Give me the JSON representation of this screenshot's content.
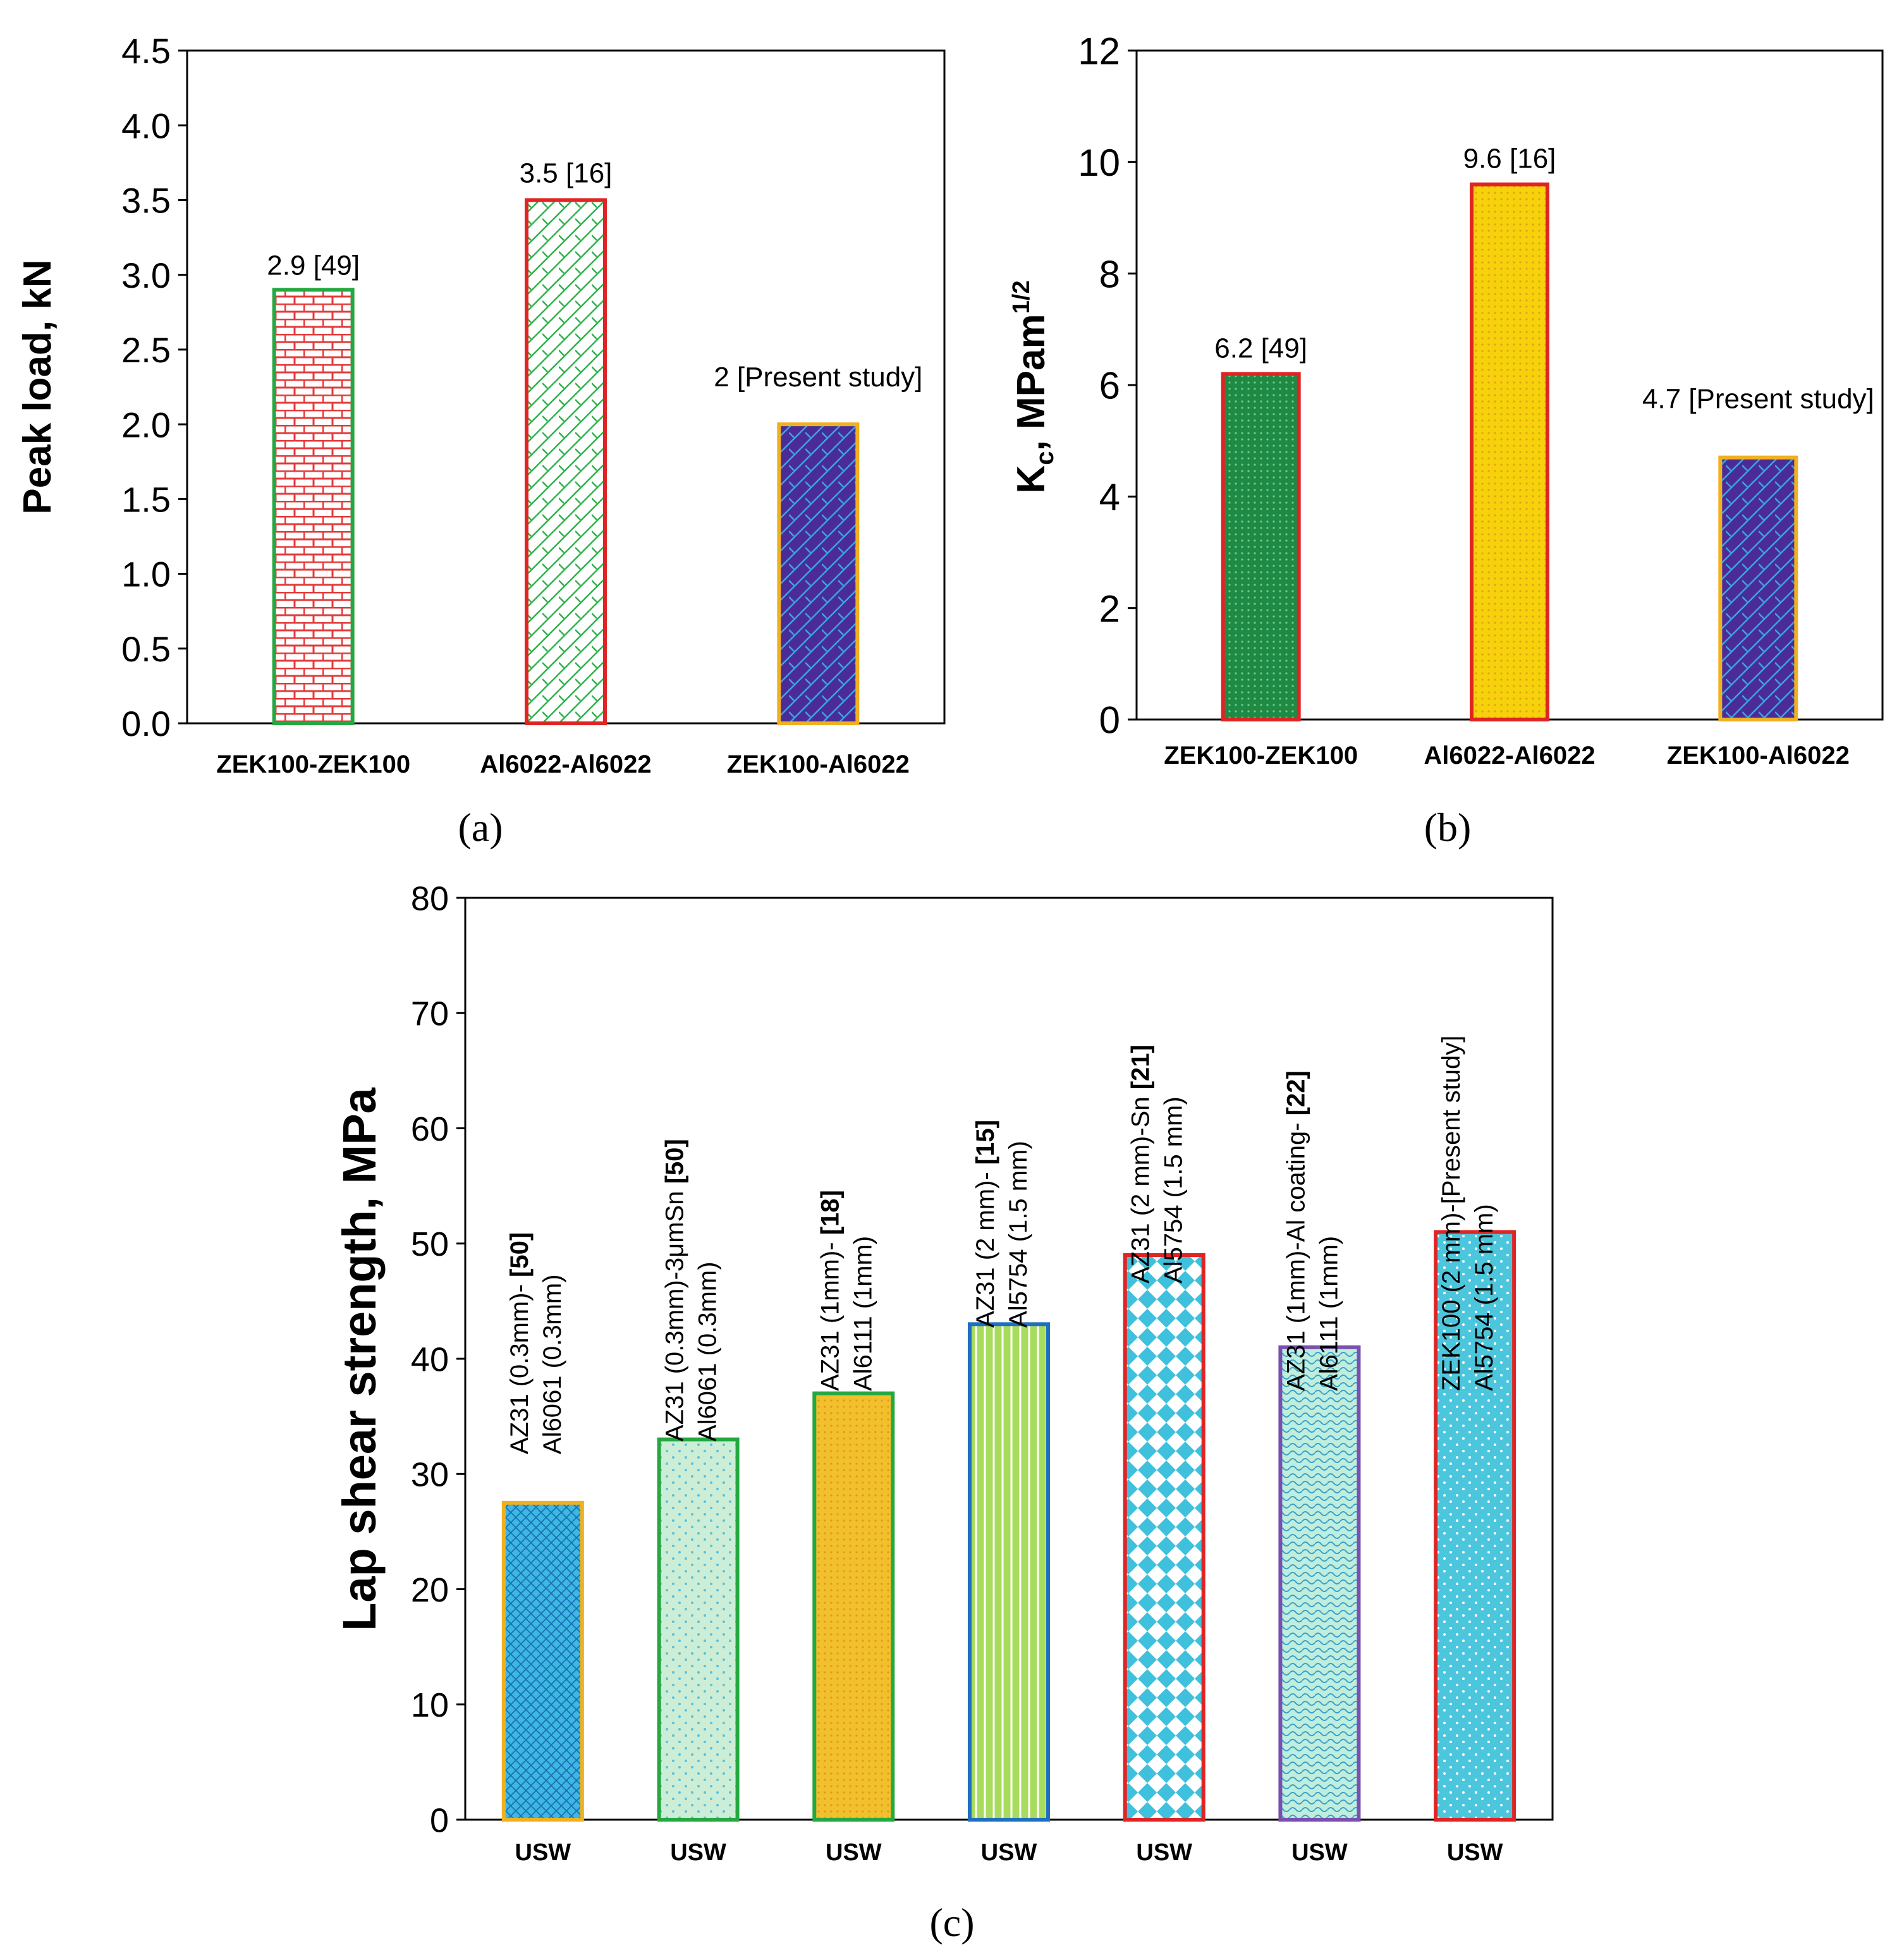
{
  "figure": {
    "panel_labels": [
      "(a)",
      "(b)",
      "(c)"
    ]
  },
  "chart_data": [
    {
      "id": "a",
      "type": "bar",
      "title": "",
      "xlabel": "",
      "ylabel": "Peak load,  kN",
      "ylim": [
        0,
        4.5
      ],
      "yticks": [
        "0.0",
        "0.5",
        "1.0",
        "1.5",
        "2.0",
        "2.5",
        "3.0",
        "3.5",
        "4.0",
        "4.5"
      ],
      "grid": false,
      "categories": [
        "ZEK100-ZEK100",
        "Al6022-Al6022",
        "ZEK100-Al6022"
      ],
      "values": [
        2.9,
        3.5,
        2.0
      ],
      "data_labels": [
        "2.9 [49]",
        "3.5 [16]",
        "2 [Present study]"
      ],
      "colors": {
        "fills": [
          "#ffffff",
          "#ffffff",
          "#4b2c96"
        ],
        "patterns": [
          "#e23b3b",
          "#2db34a",
          "#3aa3e8"
        ],
        "borders": [
          "#24a840",
          "#e02424",
          "#f0b020"
        ]
      }
    },
    {
      "id": "b",
      "type": "bar",
      "title": "",
      "xlabel": "",
      "ylabel_main": "K",
      "ylabel_sub": "c",
      "ylabel_rest": ", MPam",
      "ylabel_sup": "1/2",
      "ylim": [
        0,
        12
      ],
      "yticks": [
        "0",
        "2",
        "4",
        "6",
        "8",
        "10",
        "12"
      ],
      "grid": false,
      "categories": [
        "ZEK100-ZEK100",
        "Al6022-Al6022",
        "ZEK100-Al6022"
      ],
      "values": [
        6.2,
        9.6,
        4.7
      ],
      "data_labels": [
        "6.2 [49]",
        "9.6 [16]",
        "4.7 [Present study]"
      ],
      "colors": {
        "fills": [
          "#1f8a45",
          "#f5d20c",
          "#4b2c96"
        ],
        "patterns": [
          "#6fcf7f",
          "#e8a010",
          "#3aa3e8"
        ],
        "borders": [
          "#e02424",
          "#e02424",
          "#f0b020"
        ]
      }
    },
    {
      "id": "c",
      "type": "bar",
      "title": "",
      "xlabel": "",
      "ylabel": "Lap shear strength, MPa",
      "ylim": [
        0,
        80
      ],
      "yticks": [
        "0",
        "10",
        "20",
        "30",
        "40",
        "50",
        "60",
        "70",
        "80"
      ],
      "grid": false,
      "categories": [
        "USW",
        "USW",
        "USW",
        "USW",
        "USW",
        "USW",
        "USW"
      ],
      "values": [
        27.5,
        33,
        37,
        43,
        49,
        41,
        51
      ],
      "annotations": [
        {
          "line1": "AZ31 (0.3mm)-",
          "ref": "[50]",
          "line2": "Al6061 (0.3mm)"
        },
        {
          "line1": "AZ31 (0.3mm)-3μmSn",
          "ref": "[50]",
          "line2": "Al6061 (0.3mm)"
        },
        {
          "line1": "AZ31 (1mm)-",
          "ref": "[18]",
          "line2": "Al6111 (1mm)"
        },
        {
          "line1": "AZ31 (2 mm)-",
          "ref": "[15]",
          "line2": "Al5754 (1.5 mm)"
        },
        {
          "line1": "AZ31 (2 mm)-Sn ",
          "ref": "[21]",
          "line2": "Al5754 (1.5 mm)"
        },
        {
          "line1": "AZ31 (1mm)-Al coating-",
          "ref": "[22]",
          "line2": "Al6111 (1mm)"
        },
        {
          "line1": "ZEK100 (2 mm)-[Present study]",
          "ref": "",
          "line2": "Al5754 (1.5 mm)"
        }
      ],
      "colors": {
        "fills": [
          "#3db8e0",
          "#cdeed6",
          "#f2c02c",
          "#a8dc5c",
          "#3fc0dc",
          "#bfeede",
          "#4cc6dc"
        ],
        "patterns": [
          "#1a6fb8",
          "#5cc0d8",
          "#e09a18",
          "#ffffff",
          "#ffffff",
          "#3aa0c8",
          "#ffffff"
        ],
        "borders": [
          "#f0b020",
          "#24a840",
          "#24a840",
          "#1f6fc0",
          "#e02424",
          "#7a4fb0",
          "#e02424"
        ]
      }
    }
  ]
}
